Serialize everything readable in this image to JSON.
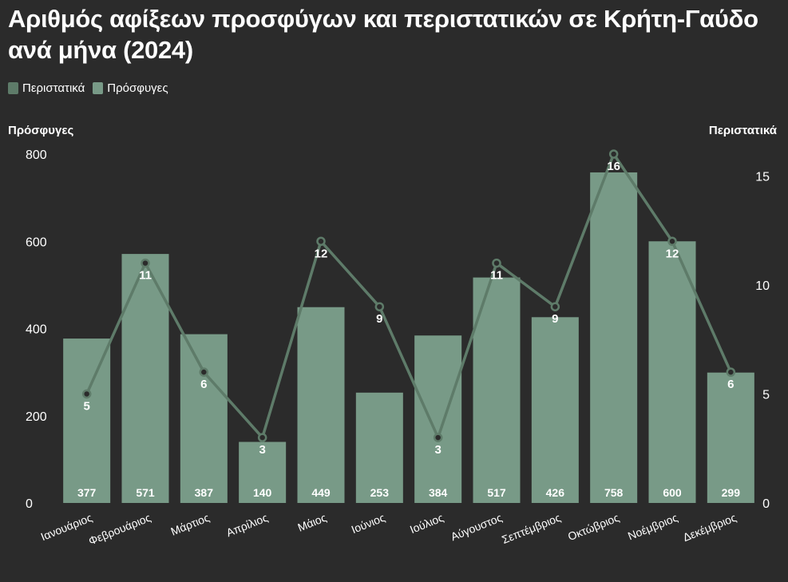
{
  "title": "Αριθμός αφίξεων προσφύγων και περιστατικών σε Κρήτη-Γαύδο ανά μήνα (2024)",
  "legend": {
    "incidents_label": "Περιστατικά",
    "refugees_label": "Πρόσφυγες"
  },
  "axes": {
    "left_title": "Πρόσφυγες",
    "right_title": "Περιστατικά"
  },
  "colors": {
    "background": "#2b2b2b",
    "bar": "#789a87",
    "line": "#5e7b69",
    "text": "#ffffff"
  },
  "chart_data": {
    "type": "bar+line",
    "categories": [
      "Ιανουάριος",
      "Φεβρουάριος",
      "Μάρτιος",
      "Απρίλιος",
      "Μάιος",
      "Ιούνιος",
      "Ιούλιος",
      "Αύγουστος",
      "Σεπτέμβριος",
      "Οκτώβριος",
      "Νοέμβριος",
      "Δεκέμβριος"
    ],
    "series": [
      {
        "name": "Πρόσφυγες",
        "type": "bar",
        "axis": "left",
        "values": [
          377,
          571,
          387,
          140,
          449,
          253,
          384,
          517,
          426,
          758,
          600,
          299
        ]
      },
      {
        "name": "Περιστατικά",
        "type": "line",
        "axis": "right",
        "values": [
          5,
          11,
          6,
          3,
          12,
          9,
          3,
          11,
          9,
          16,
          12,
          6
        ],
        "labels": [
          "5",
          "11",
          "6",
          "3",
          "12",
          "9",
          "3",
          "11",
          "9",
          "16",
          "12",
          "6"
        ]
      }
    ],
    "ylim_left": [
      0,
      800
    ],
    "yticks_left": [
      0,
      200,
      400,
      600,
      800
    ],
    "ylim_right": [
      0,
      16
    ],
    "yticks_right": [
      0,
      5,
      10,
      15
    ],
    "grid": false,
    "legend_position": "top-left"
  }
}
